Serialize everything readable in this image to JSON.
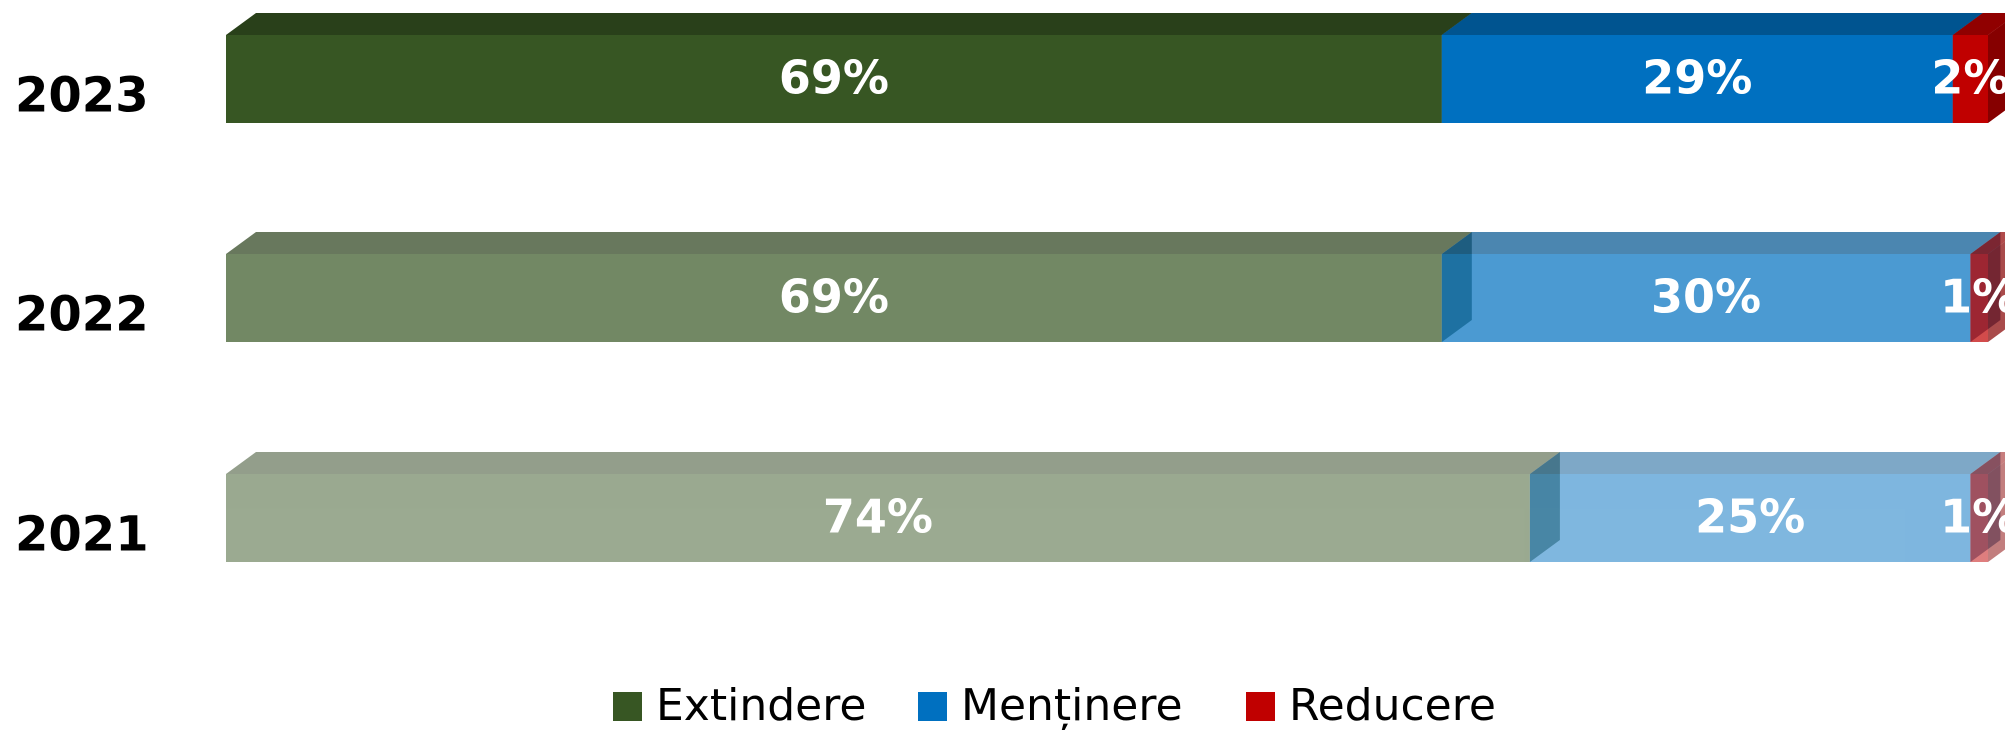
{
  "chart_data": {
    "type": "stacked_bar_horizontal",
    "categories": [
      "2023",
      "2022",
      "2021"
    ],
    "category_opacity": [
      1,
      0.7,
      0.5
    ],
    "series": [
      {
        "name": "Extindere",
        "color": "#375623",
        "values": [
          69,
          69,
          74
        ],
        "value_labels": [
          "69%",
          "69%",
          "74%"
        ]
      },
      {
        "name": "Menținere",
        "color": "#0070c0",
        "values": [
          29,
          30,
          25
        ],
        "value_labels": [
          "29%",
          "30%",
          "25%"
        ]
      },
      {
        "name": "Reducere",
        "color": "#c00000",
        "values": [
          2,
          1,
          1
        ],
        "value_labels": [
          "2%",
          "1%",
          "1%"
        ]
      }
    ],
    "legend": "bottom"
  }
}
